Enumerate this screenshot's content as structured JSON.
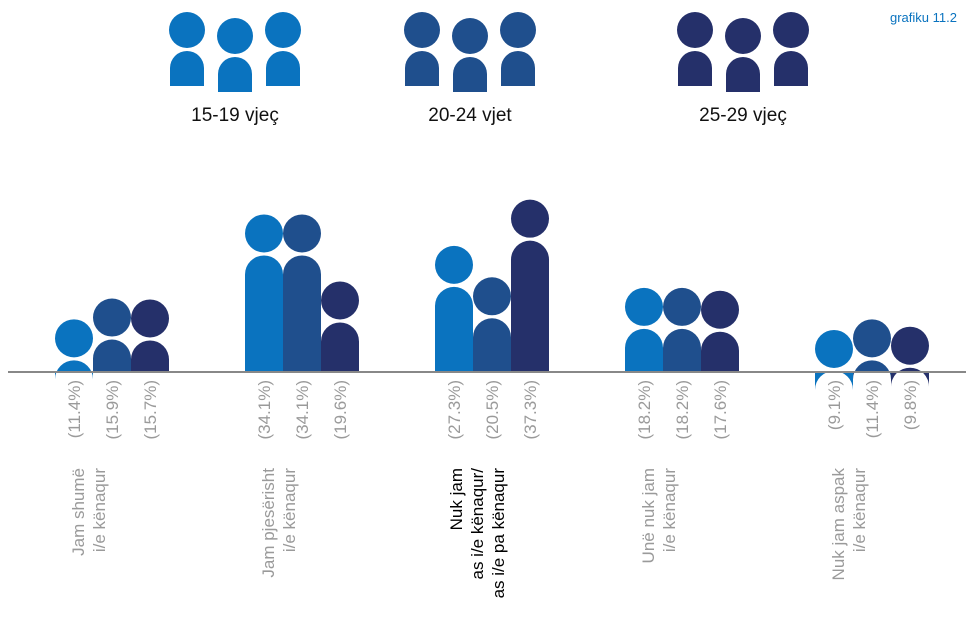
{
  "chart_id_label": "grafiku 11.2",
  "chart_data": {
    "type": "bar",
    "series": [
      {
        "name": "15-19 vjeç",
        "color": "#0a73bf",
        "values": [
          11.4,
          34.1,
          27.3,
          18.2,
          9.1
        ]
      },
      {
        "name": "20-24 vjet",
        "color": "#1f4f8d",
        "values": [
          15.9,
          34.1,
          20.5,
          18.2,
          11.4
        ]
      },
      {
        "name": "25-29 vjeç",
        "color": "#25306a",
        "values": [
          15.7,
          19.6,
          37.3,
          17.6,
          9.8
        ]
      }
    ],
    "categories": [
      {
        "lines": [
          "Jam shumë",
          "i/e kënaqur"
        ]
      },
      {
        "lines": [
          "Jam pjesërisht",
          "i/e kënaqur"
        ]
      },
      {
        "lines": [
          "Nuk jam",
          "as i/e kënaqur/",
          "as i/e pa kënaqur"
        ],
        "highlight": true
      },
      {
        "lines": [
          "Unë nuk jam",
          "i/e kënaqur"
        ]
      },
      {
        "lines": [
          "Nuk jam aspak",
          "i/e kënaqur"
        ]
      }
    ],
    "value_labels": [
      [
        "(11.4%)",
        "(15.9%)",
        "(15.7%)"
      ],
      [
        "(34.1%)",
        "(34.1%)",
        "(19.6%)"
      ],
      [
        "(27.3%)",
        "(20.5%)",
        "(37.3%)"
      ],
      [
        "(18.2%)",
        "(18.2%)",
        "(17.6%)"
      ],
      [
        "(9.1%)",
        "(11.4%)",
        "(9.8%)"
      ]
    ],
    "axis_color": "#888888",
    "legend_placement": "top"
  }
}
